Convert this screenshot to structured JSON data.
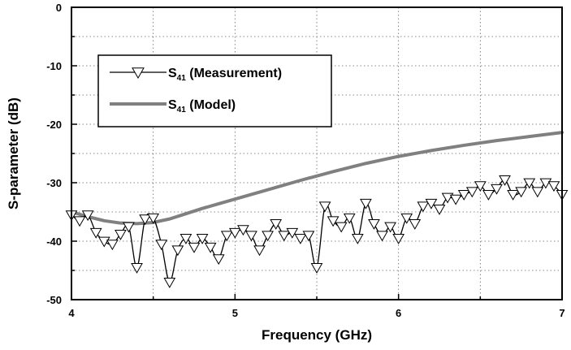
{
  "chart_data": {
    "type": "line",
    "title": "",
    "xlabel": "Frequency (GHz)",
    "ylabel": "S-parameter (dB)",
    "xlim": [
      4,
      7
    ],
    "ylim": [
      -50,
      0
    ],
    "xticks": [
      4,
      5,
      6,
      7
    ],
    "yticks": [
      0,
      -10,
      -20,
      -30,
      -40,
      -50
    ],
    "xtick_labels": [
      "4",
      "5",
      "6",
      "7"
    ],
    "ytick_labels": [
      "0",
      "-10",
      "-20",
      "-30",
      "-40",
      "-50"
    ],
    "grid": true,
    "legend_position": "top-left",
    "series": [
      {
        "name": "S41 (Measurement)",
        "legend_main": "S",
        "legend_sub": "41",
        "legend_rest": " (Measurement)",
        "color": "#000000",
        "marker": "triangle-down-open",
        "x": [
          4.0,
          4.05,
          4.1,
          4.15,
          4.2,
          4.25,
          4.3,
          4.35,
          4.4,
          4.45,
          4.5,
          4.55,
          4.6,
          4.65,
          4.7,
          4.75,
          4.8,
          4.85,
          4.9,
          4.95,
          5.0,
          5.05,
          5.1,
          5.15,
          5.2,
          5.25,
          5.3,
          5.35,
          5.4,
          5.45,
          5.5,
          5.55,
          5.6,
          5.65,
          5.7,
          5.75,
          5.8,
          5.85,
          5.9,
          5.95,
          6.0,
          6.05,
          6.1,
          6.15,
          6.2,
          6.25,
          6.3,
          6.35,
          6.4,
          6.45,
          6.5,
          6.55,
          6.6,
          6.65,
          6.7,
          6.75,
          6.8,
          6.85,
          6.9,
          6.95,
          7.0
        ],
        "y": [
          -35.5,
          -36.5,
          -35.5,
          -38.5,
          -40.0,
          -40.5,
          -38.8,
          -37.5,
          -44.5,
          -36.2,
          -36.0,
          -40.5,
          -47.0,
          -41.5,
          -39.5,
          -41.0,
          -39.5,
          -41.0,
          -43.0,
          -39.0,
          -38.5,
          -38.0,
          -39.0,
          -41.5,
          -39.0,
          -37.0,
          -39.0,
          -38.5,
          -39.5,
          -39.0,
          -44.5,
          -34.0,
          -36.5,
          -37.5,
          -36.0,
          -39.5,
          -33.5,
          -37.0,
          -39.0,
          -37.5,
          -39.5,
          -36.0,
          -37.0,
          -34.0,
          -33.5,
          -34.5,
          -32.5,
          -32.8,
          -32.0,
          -31.5,
          -30.5,
          -32.0,
          -31.0,
          -29.5,
          -32.0,
          -31.5,
          -30.0,
          -31.5,
          -30.0,
          -30.5,
          -32.0
        ]
      },
      {
        "name": "S41 (Model)",
        "legend_main": "S",
        "legend_sub": "41",
        "legend_rest": " (Model)",
        "color": "#808080",
        "marker": "none",
        "x": [
          4.0,
          4.1,
          4.2,
          4.3,
          4.4,
          4.5,
          4.6,
          4.7,
          4.8,
          4.9,
          5.0,
          5.2,
          5.4,
          5.6,
          5.8,
          6.0,
          6.2,
          6.4,
          6.6,
          6.8,
          7.0
        ],
        "y": [
          -35.0,
          -35.8,
          -36.5,
          -36.9,
          -37.0,
          -36.8,
          -36.2,
          -35.3,
          -34.4,
          -33.6,
          -32.8,
          -31.2,
          -29.6,
          -28.1,
          -26.7,
          -25.5,
          -24.5,
          -23.6,
          -22.8,
          -22.1,
          -21.4
        ]
      }
    ]
  }
}
